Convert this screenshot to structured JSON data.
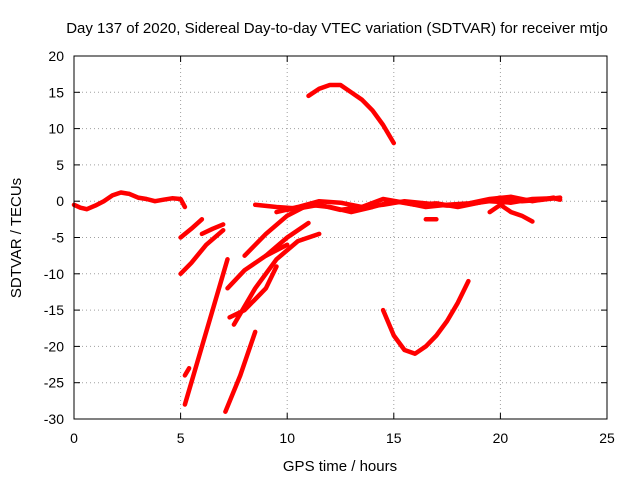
{
  "chart_data": {
    "type": "scatter",
    "title": "Day 137 of 2020, Sidereal Day-to-day VTEC variation (SDTVAR) for receiver mtjo",
    "xlabel": "GPS time / hours",
    "ylabel": "SDTVAR / TECUs",
    "xlim": [
      0,
      25
    ],
    "ylim": [
      -30,
      20
    ],
    "xticks": [
      0,
      5,
      10,
      15,
      20,
      25
    ],
    "yticks": [
      -30,
      -25,
      -20,
      -15,
      -10,
      -5,
      0,
      5,
      10,
      15,
      20
    ],
    "grid": true,
    "legend": "none",
    "series_color": "#ff0000",
    "series": [
      {
        "name": "trace-1",
        "x": [
          0.0,
          0.3,
          0.6,
          1.0,
          1.4,
          1.8,
          2.2,
          2.6,
          3.0,
          3.4,
          3.8,
          4.2,
          4.6,
          5.0,
          5.2
        ],
        "y": [
          -0.5,
          -0.9,
          -1.1,
          -0.6,
          0.0,
          0.8,
          1.2,
          1.0,
          0.5,
          0.3,
          0.0,
          0.2,
          0.4,
          0.3,
          -0.8
        ]
      },
      {
        "name": "trace-2",
        "x": [
          5.0,
          5.5,
          6.0
        ],
        "y": [
          -5.0,
          -3.8,
          -2.5
        ]
      },
      {
        "name": "trace-3",
        "x": [
          5.0,
          5.5,
          6.2,
          7.0
        ],
        "y": [
          -10.0,
          -8.5,
          -6.0,
          -4.0
        ]
      },
      {
        "name": "trace-4",
        "x": [
          5.2,
          5.8,
          6.5,
          7.2
        ],
        "y": [
          -28.0,
          -22.0,
          -15.0,
          -8.0
        ]
      },
      {
        "name": "trace-5",
        "x": [
          5.2,
          5.4
        ],
        "y": [
          -24.0,
          -23.0
        ]
      },
      {
        "name": "trace-6",
        "x": [
          6.0,
          6.5,
          7.0
        ],
        "y": [
          -4.5,
          -3.8,
          -3.2
        ]
      },
      {
        "name": "trace-7",
        "x": [
          7.1,
          7.8,
          8.5
        ],
        "y": [
          -29.0,
          -24.0,
          -18.0
        ]
      },
      {
        "name": "trace-8",
        "x": [
          7.2,
          8.0,
          9.0,
          10.0
        ],
        "y": [
          -12.0,
          -9.5,
          -7.5,
          -6.0
        ]
      },
      {
        "name": "trace-9",
        "x": [
          7.3,
          8.0,
          9.0,
          9.5
        ],
        "y": [
          -16.0,
          -15.0,
          -12.0,
          -9.0
        ]
      },
      {
        "name": "trace-10",
        "x": [
          7.5,
          8.5,
          9.5,
          10.5,
          11.5
        ],
        "y": [
          -17.0,
          -12.0,
          -8.0,
          -5.5,
          -4.5
        ]
      },
      {
        "name": "trace-11",
        "x": [
          8.0,
          9.0,
          10.0,
          11.0
        ],
        "y": [
          -7.5,
          -4.5,
          -2.0,
          -0.5
        ]
      },
      {
        "name": "trace-12",
        "x": [
          9.0,
          10.0,
          11.0
        ],
        "y": [
          -7.5,
          -5.0,
          -3.0
        ]
      },
      {
        "name": "trace-13",
        "x": [
          8.5,
          9.5,
          10.5,
          11.5,
          12.5,
          13.5,
          14.5,
          15.5,
          16.5,
          17.5,
          18.5,
          19.5,
          20.5,
          21.5,
          22.5,
          22.8
        ],
        "y": [
          -0.5,
          -0.8,
          -1.0,
          -0.5,
          -1.2,
          -0.8,
          -0.5,
          0.0,
          -0.3,
          -0.6,
          -0.4,
          0.0,
          -0.2,
          0.3,
          0.4,
          0.2
        ]
      },
      {
        "name": "trace-14",
        "x": [
          9.5,
          10.5,
          11.5,
          12.5,
          13.5,
          14.5,
          15.5,
          16.5,
          17.5,
          18.5,
          19.5,
          20.5,
          21.5,
          22.5
        ],
        "y": [
          -1.5,
          -0.8,
          0.0,
          -0.2,
          -0.8,
          0.3,
          -0.2,
          -0.8,
          -0.5,
          -0.3,
          0.3,
          0.6,
          0.0,
          0.5
        ]
      },
      {
        "name": "trace-15",
        "x": [
          10.0,
          11.0,
          12.0,
          13.0,
          14.0,
          15.0,
          16.0,
          17.0,
          18.0,
          19.0,
          20.0,
          21.0,
          22.0,
          22.8
        ],
        "y": [
          -1.2,
          -0.5,
          -0.8,
          -1.5,
          -0.8,
          0.0,
          -0.5,
          -0.3,
          -0.8,
          -0.2,
          0.5,
          0.0,
          0.2,
          0.5
        ]
      },
      {
        "name": "trace-16",
        "x": [
          11.0,
          11.5,
          12.0,
          12.5,
          13.0,
          13.5,
          14.0,
          14.5,
          15.0
        ],
        "y": [
          14.5,
          15.5,
          16.0,
          16.0,
          15.0,
          14.0,
          12.5,
          10.5,
          8.0
        ]
      },
      {
        "name": "trace-17",
        "x": [
          14.5,
          15.0,
          15.5,
          16.0,
          16.5,
          17.0,
          17.5,
          18.0,
          18.5
        ],
        "y": [
          -15.0,
          -18.5,
          -20.5,
          -21.0,
          -20.0,
          -18.5,
          -16.5,
          -14.0,
          -11.0
        ]
      },
      {
        "name": "trace-18",
        "x": [
          16.5,
          17.0
        ],
        "y": [
          -2.5,
          -2.5
        ]
      },
      {
        "name": "trace-19",
        "x": [
          20.0,
          20.5,
          21.0,
          21.5
        ],
        "y": [
          -0.5,
          -1.5,
          -2.0,
          -2.8
        ]
      },
      {
        "name": "trace-20",
        "x": [
          19.5,
          20.0,
          20.5
        ],
        "y": [
          -1.5,
          -0.5,
          0.5
        ]
      }
    ]
  }
}
